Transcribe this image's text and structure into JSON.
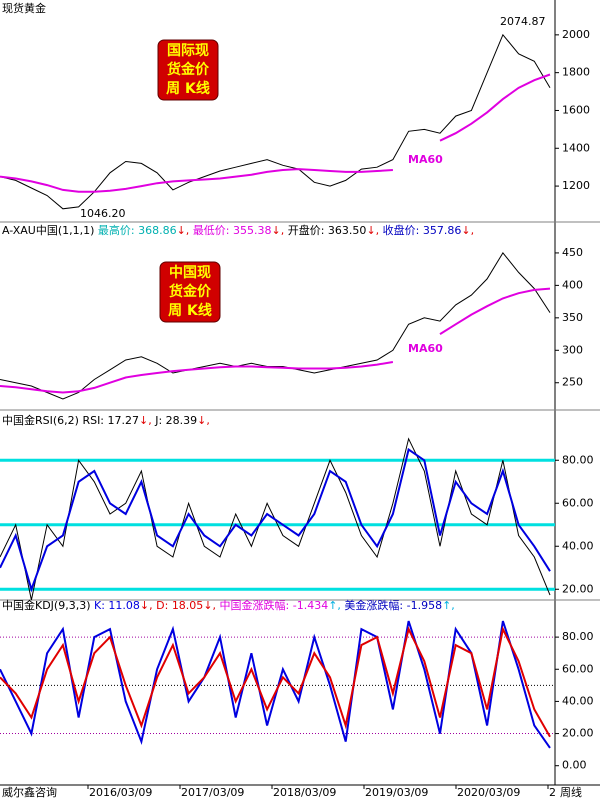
{
  "page_title": "现货黄金",
  "footer": {
    "left": "威尔鑫咨询",
    "right": "周线"
  },
  "x_labels": [
    "2016/03/09",
    "2017/03/09",
    "2018/03/09",
    "2019/03/09",
    "2020/03/09",
    "2"
  ],
  "chart_data": [
    {
      "type": "line",
      "badge": [
        "国际现",
        "货金价",
        "周 K线"
      ],
      "ylim": [
        1010,
        2105
      ],
      "yticks": [
        1200,
        1400,
        1600,
        1800,
        2000
      ],
      "annotations": [
        {
          "text": "2074.87"
        },
        {
          "text": "1046.20"
        },
        {
          "text": "MA60",
          "color": "#e000e0"
        }
      ],
      "series": [
        {
          "name": "现货黄金",
          "color": "#000000",
          "width": 1,
          "values": [
            1250,
            1230,
            1190,
            1150,
            1080,
            1090,
            1170,
            1270,
            1330,
            1320,
            1270,
            1180,
            1220,
            1250,
            1280,
            1300,
            1320,
            1340,
            1310,
            1290,
            1220,
            1200,
            1230,
            1290,
            1300,
            1340,
            1490,
            1500,
            1480,
            1570,
            1600,
            1800,
            2000,
            1900,
            1860,
            1720
          ]
        },
        {
          "name": "MA60",
          "color": "#e000e0",
          "width": 2,
          "values": [
            1250,
            1240,
            1225,
            1205,
            1180,
            1170,
            1170,
            1175,
            1185,
            1200,
            1215,
            1225,
            1230,
            1235,
            1240,
            1250,
            1260,
            1275,
            1285,
            1290,
            1285,
            1280,
            1275,
            1275,
            1280,
            1285,
            null,
            null,
            1440,
            1480,
            1530,
            1590,
            1660,
            1720,
            1760,
            1790
          ]
        }
      ]
    },
    {
      "type": "line",
      "header": [
        {
          "text": "A-XAU中国(1,1,1) ",
          "color": "#000000"
        },
        {
          "text": "最高价: 368.86",
          "color": "#00b0b0"
        },
        {
          "text": "↓, ",
          "color": "#e00000"
        },
        {
          "text": "最低价: 355.38",
          "color": "#e000e0"
        },
        {
          "text": "↓, ",
          "color": "#e00000"
        },
        {
          "text": "开盘价: 363.50",
          "color": "#000000"
        },
        {
          "text": "↓, ",
          "color": "#e00000"
        },
        {
          "text": "收盘价: 357.86",
          "color": "#0000c0"
        },
        {
          "text": "↓,",
          "color": "#e00000"
        }
      ],
      "badge": [
        "中国现",
        "货金价",
        "周 K线"
      ],
      "ylim": [
        208,
        473
      ],
      "yticks": [
        250,
        300,
        350,
        400,
        450
      ],
      "annotations": [
        {
          "text": "MA60",
          "color": "#e000e0"
        }
      ],
      "series": [
        {
          "name": "A-XAU中国",
          "color": "#000000",
          "width": 1,
          "values": [
            255,
            250,
            245,
            235,
            225,
            235,
            255,
            270,
            285,
            290,
            280,
            265,
            270,
            275,
            280,
            275,
            280,
            275,
            275,
            270,
            265,
            270,
            275,
            280,
            285,
            300,
            340,
            350,
            345,
            370,
            385,
            410,
            450,
            420,
            395,
            358
          ]
        },
        {
          "name": "MA60",
          "color": "#e000e0",
          "width": 2,
          "values": [
            245,
            243,
            240,
            237,
            235,
            237,
            242,
            250,
            258,
            262,
            265,
            268,
            270,
            272,
            274,
            275,
            275,
            274,
            273,
            272,
            272,
            272,
            273,
            275,
            278,
            282,
            null,
            null,
            325,
            340,
            355,
            368,
            380,
            388,
            393,
            395
          ]
        }
      ]
    },
    {
      "type": "line",
      "header": [
        {
          "text": "中国金RSI(6,2)  RSI: 17.27",
          "color": "#000000"
        },
        {
          "text": "↓, ",
          "color": "#e00000"
        },
        {
          "text": "J: 28.39",
          "color": "#000000"
        },
        {
          "text": "↓,",
          "color": "#e00000"
        }
      ],
      "ylim": [
        15,
        95
      ],
      "yticks": [
        {
          "value": 20,
          "label": "20.00"
        },
        {
          "value": 40,
          "label": "40.00"
        },
        {
          "value": 60,
          "label": "60.00"
        },
        {
          "value": 80,
          "label": "80.00"
        }
      ],
      "hlines": [
        {
          "value": 80,
          "color": "#00e0e0",
          "width": 3
        },
        {
          "value": 50,
          "color": "#00e0e0",
          "width": 3
        },
        {
          "value": 20,
          "color": "#00e0e0",
          "width": 3
        }
      ],
      "series": [
        {
          "name": "RSI",
          "color": "#000000",
          "width": 1,
          "values": [
            35,
            50,
            15,
            50,
            40,
            80,
            70,
            55,
            60,
            75,
            40,
            35,
            60,
            40,
            35,
            55,
            40,
            60,
            45,
            40,
            60,
            80,
            65,
            45,
            35,
            60,
            90,
            75,
            40,
            75,
            55,
            50,
            80,
            45,
            35,
            17.27
          ]
        },
        {
          "name": "J",
          "color": "#0000e0",
          "width": 2,
          "values": [
            30,
            45,
            20,
            40,
            45,
            70,
            75,
            60,
            55,
            70,
            45,
            40,
            55,
            45,
            40,
            50,
            45,
            55,
            50,
            45,
            55,
            75,
            70,
            50,
            40,
            55,
            85,
            80,
            45,
            70,
            60,
            55,
            75,
            50,
            40,
            28.39
          ]
        }
      ]
    },
    {
      "type": "line",
      "header": [
        {
          "text": "中国金KDJ(9,3,3) ",
          "color": "#000000"
        },
        {
          "text": "K: 11.08",
          "color": "#0000e0"
        },
        {
          "text": "↓, ",
          "color": "#e00000"
        },
        {
          "text": "D: 18.05",
          "color": "#e00000"
        },
        {
          "text": "↓, ",
          "color": "#e00000"
        },
        {
          "text": "中国金涨跌幅: -1.434",
          "color": "#e000e0"
        },
        {
          "text": "↑, ",
          "color": "#00b0e0"
        },
        {
          "text": "美金涨跌幅: -1.958",
          "color": "#0000c0"
        },
        {
          "text": "↑,",
          "color": "#00b0e0"
        }
      ],
      "ylim": [
        -12,
        95
      ],
      "yticks": [
        {
          "value": 0,
          "label": "0.00"
        },
        {
          "value": 20,
          "label": "20.00"
        },
        {
          "value": 40,
          "label": "40.00"
        },
        {
          "value": 60,
          "label": "60.00"
        },
        {
          "value": 80,
          "label": "80.00"
        }
      ],
      "hlines": [
        {
          "value": 80,
          "color": "#a000a0",
          "width": 1,
          "dash": true
        },
        {
          "value": 50,
          "color": "#000000",
          "width": 1,
          "dash": true
        },
        {
          "value": 20,
          "color": "#a000a0",
          "width": 1,
          "dash": true
        }
      ],
      "series": [
        {
          "name": "K",
          "color": "#0000e0",
          "width": 2,
          "values": [
            60,
            40,
            20,
            70,
            85,
            30,
            80,
            85,
            40,
            15,
            60,
            85,
            40,
            55,
            80,
            30,
            70,
            25,
            60,
            40,
            80,
            50,
            15,
            85,
            80,
            35,
            90,
            60,
            20,
            85,
            70,
            25,
            90,
            60,
            25,
            11.08
          ]
        },
        {
          "name": "D",
          "color": "#e00000",
          "width": 2,
          "values": [
            55,
            45,
            30,
            60,
            75,
            40,
            70,
            80,
            50,
            25,
            55,
            75,
            45,
            55,
            70,
            40,
            60,
            35,
            55,
            45,
            70,
            55,
            25,
            75,
            80,
            45,
            85,
            65,
            30,
            75,
            70,
            35,
            85,
            65,
            35,
            18.05
          ]
        }
      ]
    }
  ]
}
